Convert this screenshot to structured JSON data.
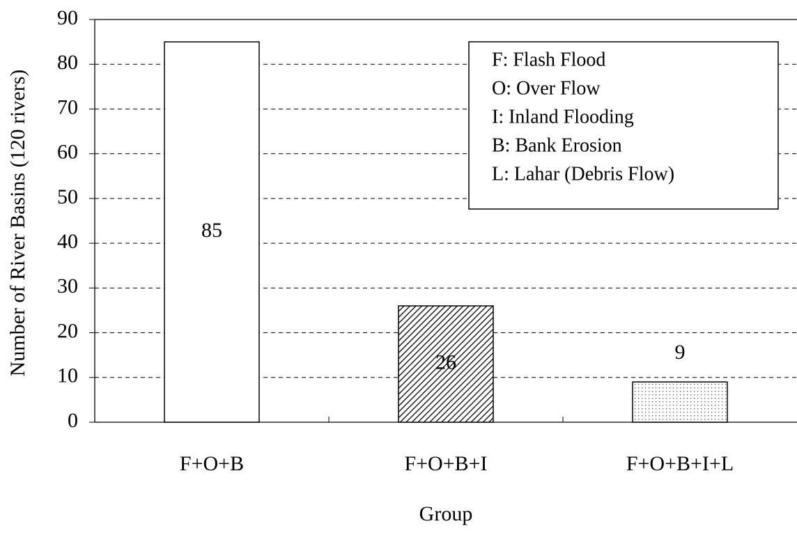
{
  "chart_data": {
    "type": "bar",
    "x_label": "Group",
    "y_label": "Number of River Basins (120 rivers)",
    "categories": [
      "F+O+B",
      "F+O+B+I",
      "F+O+B+I+L"
    ],
    "values": [
      85,
      26,
      9
    ],
    "fills": [
      "solid",
      "hatch",
      "dots"
    ],
    "color": "#ffffff",
    "ylim": [
      0,
      90
    ],
    "yticks": [
      0,
      10,
      20,
      30,
      40,
      50,
      60,
      70,
      80,
      90
    ],
    "grid": true,
    "annotations": [
      "F: Flash Flood",
      "O: Over Flow",
      "I: Inland Flooding",
      "B: Bank Erosion",
      "L: Lahar (Debris Flow)"
    ]
  }
}
